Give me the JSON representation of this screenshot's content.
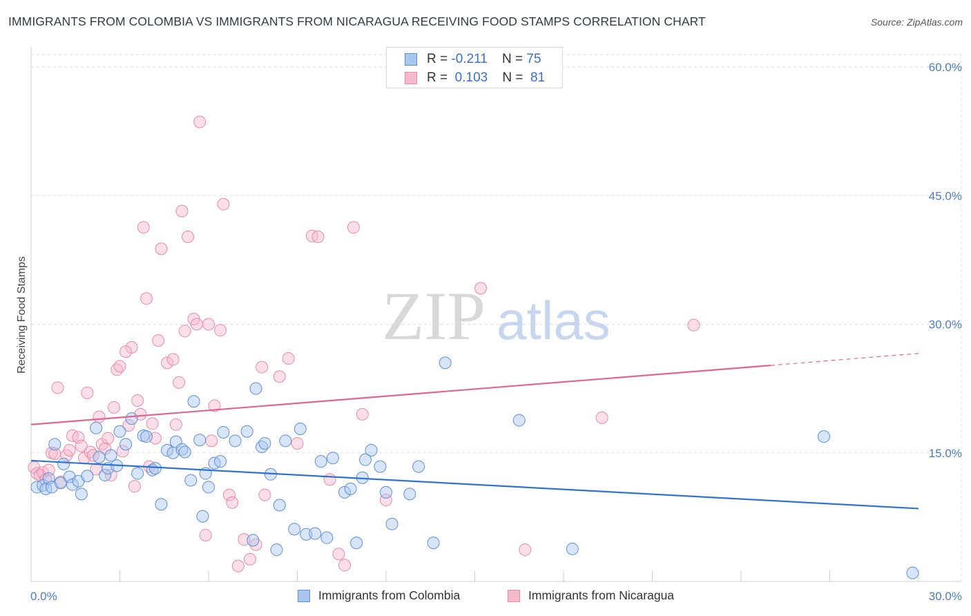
{
  "header": {
    "title": "IMMIGRANTS FROM COLOMBIA VS IMMIGRANTS FROM NICARAGUA RECEIVING FOOD STAMPS CORRELATION CHART",
    "source": "Source: ZipAtlas.com"
  },
  "watermark": {
    "zip": "ZIP",
    "atlas": "atlas"
  },
  "stats_legend": [
    {
      "r_label": "R =",
      "r_value": "-0.211",
      "n_label": "N =",
      "n_value": "75"
    },
    {
      "r_label": "R =",
      "r_value": "0.103",
      "n_label": "N =",
      "n_value": "81"
    }
  ],
  "colors": {
    "colombia_fill": "#a9c6f0",
    "colombia_stroke": "#5b8fd8",
    "colombia_line": "#2e72d2",
    "nicaragua_fill": "#f6b8cb",
    "nicaragua_stroke": "#e78aa8",
    "nicaragua_line": "#e0668f",
    "grid": "#dddddd",
    "tick_text": "#4a7cc9"
  },
  "chart_data": {
    "type": "scatter",
    "title": "IMMIGRANTS FROM COLOMBIA VS IMMIGRANTS FROM NICARAGUA RECEIVING FOOD STAMPS CORRELATION CHART",
    "xlabel": "",
    "ylabel": "Receiving Food Stamps",
    "xlim": [
      0,
      30
    ],
    "ylim": [
      0,
      60
    ],
    "x_tick_labels": [
      "0.0%",
      "30.0%"
    ],
    "y_ticks": [
      15,
      30,
      45,
      60
    ],
    "y_tick_labels": [
      "15.0%",
      "30.0%",
      "45.0%",
      "60.0%"
    ],
    "grid": true,
    "legend_position": "bottom",
    "series": [
      {
        "name": "Immigrants from Colombia",
        "r": -0.211,
        "n": 75,
        "trend": {
          "x0": 0,
          "y0": 14.1,
          "x1": 30,
          "y1": 8.5
        },
        "points": [
          [
            0.2,
            11.0
          ],
          [
            0.4,
            11.2
          ],
          [
            0.5,
            10.8
          ],
          [
            0.6,
            12.0
          ],
          [
            0.7,
            11.0
          ],
          [
            0.8,
            16.0
          ],
          [
            1.0,
            11.5
          ],
          [
            1.1,
            13.7
          ],
          [
            1.3,
            12.2
          ],
          [
            1.4,
            11.3
          ],
          [
            1.6,
            11.7
          ],
          [
            1.7,
            10.2
          ],
          [
            1.9,
            12.3
          ],
          [
            2.2,
            17.9
          ],
          [
            2.3,
            14.5
          ],
          [
            2.5,
            12.4
          ],
          [
            2.6,
            13.2
          ],
          [
            2.7,
            14.7
          ],
          [
            2.9,
            13.5
          ],
          [
            3.0,
            17.5
          ],
          [
            3.2,
            16.0
          ],
          [
            3.4,
            19.0
          ],
          [
            3.6,
            12.6
          ],
          [
            3.8,
            17.0
          ],
          [
            3.9,
            16.9
          ],
          [
            4.1,
            13.0
          ],
          [
            4.2,
            13.2
          ],
          [
            4.4,
            9.0
          ],
          [
            4.6,
            15.3
          ],
          [
            4.8,
            15.0
          ],
          [
            4.9,
            16.3
          ],
          [
            5.1,
            15.4
          ],
          [
            5.2,
            15.1
          ],
          [
            5.4,
            11.8
          ],
          [
            5.5,
            21.0
          ],
          [
            5.7,
            16.5
          ],
          [
            5.8,
            7.6
          ],
          [
            5.9,
            12.6
          ],
          [
            6.0,
            11.0
          ],
          [
            6.2,
            13.8
          ],
          [
            6.4,
            14.0
          ],
          [
            6.5,
            17.4
          ],
          [
            6.9,
            16.4
          ],
          [
            7.3,
            17.5
          ],
          [
            7.5,
            4.8
          ],
          [
            7.6,
            22.5
          ],
          [
            7.8,
            15.7
          ],
          [
            7.9,
            16.1
          ],
          [
            8.1,
            12.5
          ],
          [
            8.3,
            3.7
          ],
          [
            8.4,
            8.9
          ],
          [
            8.6,
            16.4
          ],
          [
            8.9,
            6.1
          ],
          [
            9.1,
            17.8
          ],
          [
            9.3,
            5.5
          ],
          [
            9.6,
            5.6
          ],
          [
            9.8,
            14.0
          ],
          [
            10.0,
            5.1
          ],
          [
            10.2,
            14.4
          ],
          [
            10.6,
            10.4
          ],
          [
            10.8,
            10.8
          ],
          [
            11.0,
            4.5
          ],
          [
            11.2,
            12.1
          ],
          [
            11.3,
            14.2
          ],
          [
            11.5,
            15.3
          ],
          [
            11.8,
            13.4
          ],
          [
            12.0,
            10.4
          ],
          [
            12.2,
            6.7
          ],
          [
            12.8,
            10.2
          ],
          [
            13.1,
            13.4
          ],
          [
            13.6,
            4.5
          ],
          [
            14.0,
            25.5
          ],
          [
            16.5,
            18.8
          ],
          [
            18.3,
            3.8
          ],
          [
            26.8,
            16.9
          ],
          [
            29.8,
            1.0
          ]
        ]
      },
      {
        "name": "Immigrants from Nicaragua",
        "r": 0.103,
        "n": 81,
        "trend": {
          "x0": 0,
          "y0": 18.3,
          "x1": 25.0,
          "y1": 25.2,
          "dash_to_x": 30,
          "dash_to_y": 26.6
        },
        "points": [
          [
            0.1,
            13.3
          ],
          [
            0.2,
            12.6
          ],
          [
            0.3,
            12.4
          ],
          [
            0.4,
            12.7
          ],
          [
            0.5,
            11.9
          ],
          [
            0.6,
            13.0
          ],
          [
            0.7,
            15.0
          ],
          [
            0.8,
            14.9
          ],
          [
            1.0,
            11.6
          ],
          [
            1.2,
            14.7
          ],
          [
            1.3,
            15.3
          ],
          [
            1.4,
            17.0
          ],
          [
            1.6,
            16.8
          ],
          [
            1.7,
            15.8
          ],
          [
            1.8,
            14.4
          ],
          [
            2.0,
            15.1
          ],
          [
            2.1,
            14.7
          ],
          [
            2.2,
            13.1
          ],
          [
            2.4,
            16.0
          ],
          [
            2.5,
            15.5
          ],
          [
            2.6,
            16.7
          ],
          [
            2.7,
            12.4
          ],
          [
            2.8,
            20.3
          ],
          [
            2.9,
            24.7
          ],
          [
            3.0,
            25.1
          ],
          [
            3.1,
            15.2
          ],
          [
            3.3,
            18.2
          ],
          [
            3.4,
            27.3
          ],
          [
            3.5,
            11.1
          ],
          [
            3.6,
            21.1
          ],
          [
            3.7,
            19.5
          ],
          [
            3.8,
            41.3
          ],
          [
            3.9,
            33.0
          ],
          [
            4.0,
            13.4
          ],
          [
            4.1,
            18.4
          ],
          [
            4.2,
            16.7
          ],
          [
            4.4,
            38.8
          ],
          [
            4.6,
            25.5
          ],
          [
            4.8,
            25.9
          ],
          [
            4.9,
            18.3
          ],
          [
            5.1,
            43.2
          ],
          [
            5.2,
            29.2
          ],
          [
            5.3,
            40.2
          ],
          [
            5.5,
            30.6
          ],
          [
            5.6,
            30.0
          ],
          [
            5.7,
            53.6
          ],
          [
            5.9,
            5.4
          ],
          [
            6.1,
            16.4
          ],
          [
            6.2,
            20.5
          ],
          [
            6.4,
            29.3
          ],
          [
            6.5,
            44.0
          ],
          [
            6.7,
            10.1
          ],
          [
            6.8,
            9.2
          ],
          [
            7.0,
            1.8
          ],
          [
            7.2,
            4.9
          ],
          [
            7.4,
            2.6
          ],
          [
            7.6,
            4.3
          ],
          [
            7.9,
            10.1
          ],
          [
            8.4,
            23.9
          ],
          [
            8.7,
            26.0
          ],
          [
            9.0,
            16.1
          ],
          [
            9.5,
            40.3
          ],
          [
            9.7,
            40.2
          ],
          [
            10.1,
            11.9
          ],
          [
            10.4,
            3.2
          ],
          [
            10.6,
            1.9
          ],
          [
            10.9,
            41.3
          ],
          [
            11.2,
            19.5
          ],
          [
            12.0,
            9.5
          ],
          [
            15.2,
            34.2
          ],
          [
            16.7,
            3.7
          ],
          [
            19.3,
            19.1
          ],
          [
            22.4,
            29.9
          ],
          [
            0.9,
            22.6
          ],
          [
            1.9,
            22.0
          ],
          [
            2.3,
            19.2
          ],
          [
            4.3,
            28.1
          ],
          [
            5.0,
            23.2
          ],
          [
            3.2,
            26.8
          ],
          [
            6.0,
            30.0
          ],
          [
            7.8,
            25.0
          ]
        ]
      }
    ]
  }
}
